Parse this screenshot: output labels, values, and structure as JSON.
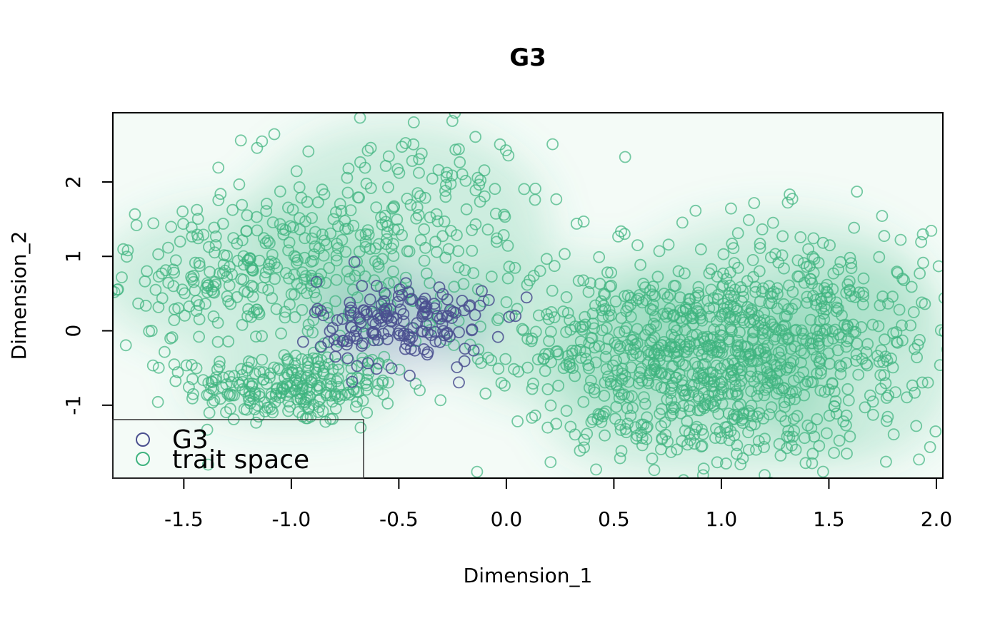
{
  "chart_data": {
    "type": "scatter",
    "title": "G3",
    "xlabel": "Dimension_1",
    "ylabel": "Dimension_2",
    "xlim": [
      -1.83,
      2.03
    ],
    "ylim": [
      -1.98,
      2.93
    ],
    "xticks": [
      -1.5,
      -1.0,
      -0.5,
      0.0,
      0.5,
      1.0,
      1.5,
      2.0
    ],
    "xtick_labels": [
      "-1.5",
      "-1.0",
      "-0.5",
      "0.0",
      "0.5",
      "1.0",
      "1.5",
      "2.0"
    ],
    "yticks": [
      -1,
      0,
      1,
      2
    ],
    "ytick_labels": [
      "-1",
      "0",
      "1",
      "2"
    ],
    "grid": false,
    "legend_position": "bottom-left",
    "background": "density shading of trait space and G3",
    "series": [
      {
        "name": "G3",
        "color": "#4a4f8f",
        "marker": "open-circle",
        "density_color": "#5b5fa8",
        "clusters": [
          {
            "center": [
              -0.48,
              0.1
            ],
            "spread": [
              0.2,
              0.3
            ],
            "count": 170
          }
        ]
      },
      {
        "name": "trait space",
        "color": "#3fb37f",
        "marker": "open-circle",
        "density_color": "#46b98a",
        "clusters": [
          {
            "center": [
              -1.0,
              -0.75
            ],
            "spread": [
              0.25,
              0.25
            ],
            "count": 260
          },
          {
            "center": [
              -1.2,
              0.7
            ],
            "spread": [
              0.35,
              0.5
            ],
            "count": 250
          },
          {
            "center": [
              -0.5,
              1.4
            ],
            "spread": [
              0.35,
              0.7
            ],
            "count": 220
          },
          {
            "center": [
              0.85,
              -0.3
            ],
            "spread": [
              0.35,
              0.45
            ],
            "count": 420
          },
          {
            "center": [
              1.25,
              0.45
            ],
            "spread": [
              0.35,
              0.55
            ],
            "count": 240
          },
          {
            "center": [
              0.9,
              -1.25
            ],
            "spread": [
              0.35,
              0.35
            ],
            "count": 170
          },
          {
            "center": [
              1.6,
              -0.4
            ],
            "spread": [
              0.25,
              0.7
            ],
            "count": 150
          },
          {
            "center": [
              0.3,
              0.0
            ],
            "spread": [
              0.3,
              0.5
            ],
            "count": 90
          }
        ]
      }
    ]
  },
  "legend": {
    "items": [
      {
        "label": "G3",
        "color": "#4a4f8f"
      },
      {
        "label": "trait space",
        "color": "#3fb37f"
      }
    ]
  }
}
